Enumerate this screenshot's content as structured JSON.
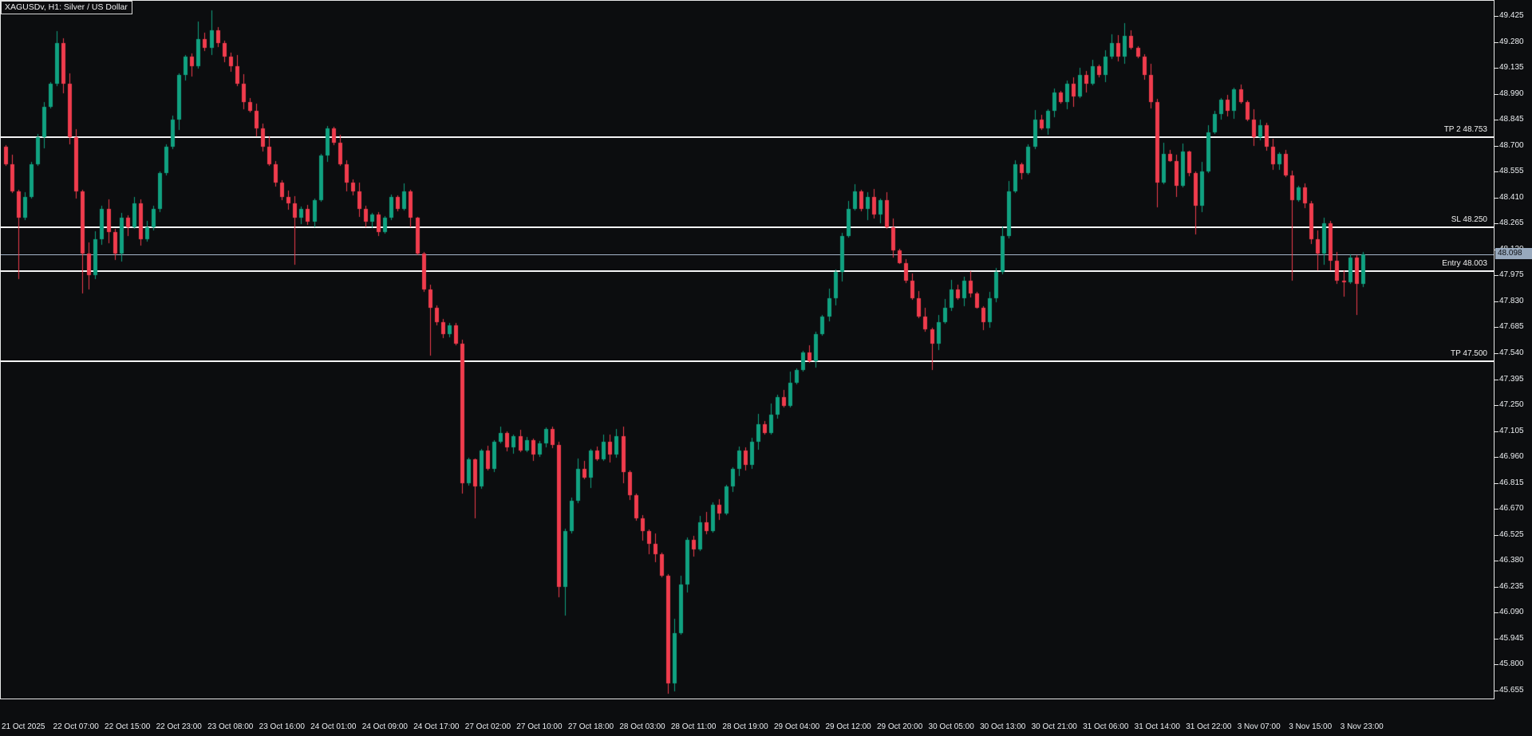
{
  "window": {
    "title": "XAGUSDv, H1:  Silver / US Dollar",
    "symbol": "XAGUSDv",
    "timeframe": "H1",
    "description": "Silver / US Dollar"
  },
  "colors": {
    "background": "#0c0d0f",
    "frame": "#e6e6e6",
    "bull": "#10a281",
    "bear": "#f03c4d",
    "level_line": "#f4f4f4",
    "current_price_line": "#a7b6ca",
    "current_price_badge_bg": "#98a9bd",
    "current_price_badge_text": "#0d1015",
    "axis_text": "#edf0f3"
  },
  "levels": [
    {
      "id": "tp2",
      "label": "TP 2 48.753",
      "price": 48.753
    },
    {
      "id": "sl",
      "label": "SL 48.250",
      "price": 48.25
    },
    {
      "id": "entry",
      "label": "Entry 48.003",
      "price": 48.003
    },
    {
      "id": "tp1",
      "label": "TP 47.500",
      "price": 47.5
    }
  ],
  "current_price": {
    "value": "48.098",
    "price": 48.098
  },
  "y_axis": {
    "top_price": 49.514,
    "bottom_price": 45.615,
    "ticks": [
      "49.425",
      "49.280",
      "49.135",
      "48.990",
      "48.845",
      "48.700",
      "48.555",
      "48.410",
      "48.265",
      "48.120",
      "47.975",
      "47.830",
      "47.685",
      "47.540",
      "47.395",
      "47.250",
      "47.105",
      "46.960",
      "46.815",
      "46.670",
      "46.525",
      "46.380",
      "46.235",
      "46.090",
      "45.945",
      "45.800",
      "45.655"
    ]
  },
  "x_axis": {
    "ticks": [
      "21 Oct 2025",
      "22 Oct 07:00",
      "22 Oct 15:00",
      "22 Oct 23:00",
      "23 Oct 08:00",
      "23 Oct 16:00",
      "24 Oct 01:00",
      "24 Oct 09:00",
      "24 Oct 17:00",
      "27 Oct 02:00",
      "27 Oct 10:00",
      "27 Oct 18:00",
      "28 Oct 03:00",
      "28 Oct 11:00",
      "28 Oct 19:00",
      "29 Oct 04:00",
      "29 Oct 12:00",
      "29 Oct 20:00",
      "30 Oct 05:00",
      "30 Oct 13:00",
      "30 Oct 21:00",
      "31 Oct 06:00",
      "31 Oct 14:00",
      "31 Oct 22:00",
      "3 Nov 07:00",
      "3 Nov 15:00",
      "3 Nov 23:00"
    ]
  },
  "chart_data": {
    "type": "candlestick",
    "title": "XAGUSDv, H1: Silver / US Dollar",
    "symbol": "XAGUSDv",
    "timeframe": "H1",
    "bars_visible": 212,
    "ylim": [
      45.615,
      49.514
    ],
    "x_tick_labels": [
      "21 Oct 2025",
      "22 Oct 07:00",
      "22 Oct 15:00",
      "22 Oct 23:00",
      "23 Oct 08:00",
      "23 Oct 16:00",
      "24 Oct 01:00",
      "24 Oct 09:00",
      "24 Oct 17:00",
      "27 Oct 02:00",
      "27 Oct 10:00",
      "27 Oct 18:00",
      "28 Oct 03:00",
      "28 Oct 11:00",
      "28 Oct 19:00",
      "29 Oct 04:00",
      "29 Oct 12:00",
      "29 Oct 20:00",
      "30 Oct 05:00",
      "30 Oct 13:00",
      "30 Oct 21:00",
      "31 Oct 06:00",
      "31 Oct 14:00",
      "31 Oct 22:00",
      "3 Nov 07:00",
      "3 Nov 15:00",
      "3 Nov 23:00"
    ],
    "open_first": 48.7,
    "closes": [
      48.6,
      48.45,
      48.3,
      48.42,
      48.6,
      48.75,
      48.92,
      49.05,
      49.28,
      49.05,
      48.75,
      48.45,
      48.1,
      47.98,
      48.18,
      48.35,
      48.22,
      48.1,
      48.3,
      48.25,
      48.38,
      48.18,
      48.25,
      48.35,
      48.55,
      48.7,
      48.85,
      49.1,
      49.2,
      49.15,
      49.3,
      49.25,
      49.35,
      49.28,
      49.2,
      49.15,
      49.05,
      48.95,
      48.9,
      48.8,
      48.7,
      48.6,
      48.5,
      48.42,
      48.38,
      48.3,
      48.35,
      48.28,
      48.4,
      48.65,
      48.8,
      48.72,
      48.6,
      48.5,
      48.45,
      48.35,
      48.28,
      48.32,
      48.22,
      48.3,
      48.42,
      48.35,
      48.45,
      48.3,
      48.1,
      47.9,
      47.8,
      47.72,
      47.65,
      47.7,
      47.6,
      46.82,
      46.95,
      46.8,
      47.0,
      46.9,
      47.05,
      47.1,
      47.02,
      47.08,
      47.0,
      47.06,
      46.98,
      47.04,
      47.12,
      47.03,
      46.24,
      46.55,
      46.72,
      46.9,
      46.85,
      47.0,
      46.95,
      47.05,
      46.98,
      47.08,
      46.88,
      46.75,
      46.62,
      46.55,
      46.48,
      46.42,
      46.3,
      45.7,
      45.98,
      46.25,
      46.5,
      46.45,
      46.6,
      46.55,
      46.7,
      46.65,
      46.8,
      46.9,
      47.0,
      46.92,
      47.05,
      47.15,
      47.1,
      47.2,
      47.3,
      47.25,
      47.38,
      47.45,
      47.55,
      47.5,
      47.65,
      47.75,
      47.85,
      48.0,
      48.2,
      48.35,
      48.45,
      48.35,
      48.42,
      48.32,
      48.4,
      48.25,
      48.12,
      48.05,
      47.95,
      47.85,
      47.75,
      47.68,
      47.6,
      47.72,
      47.8,
      47.9,
      47.85,
      47.95,
      47.88,
      47.8,
      47.72,
      47.85,
      48.0,
      48.2,
      48.45,
      48.6,
      48.55,
      48.7,
      48.85,
      48.8,
      48.9,
      49.0,
      48.95,
      49.05,
      48.98,
      49.1,
      49.05,
      49.15,
      49.1,
      49.2,
      49.28,
      49.2,
      49.32,
      49.25,
      49.2,
      49.1,
      48.95,
      48.5,
      48.66,
      48.62,
      48.48,
      48.67,
      48.55,
      48.37,
      48.56,
      48.78,
      48.88,
      48.96,
      48.9,
      49.02,
      48.95,
      48.85,
      48.75,
      48.82,
      48.7,
      48.6,
      48.66,
      48.54,
      48.4,
      48.47,
      48.38,
      48.18,
      48.1,
      48.27,
      48.06,
      47.95,
      47.94,
      48.08,
      47.93,
      48.098
    ],
    "wick_overrides": {
      "2": {
        "low": 47.96
      },
      "8": {
        "high": 49.345
      },
      "12": {
        "low": 47.88
      },
      "13": {
        "low": 47.9
      },
      "30": {
        "high": 49.4
      },
      "32": {
        "high": 49.46
      },
      "45": {
        "low": 48.04
      },
      "66": {
        "low": 47.53
      },
      "71": {
        "low": 46.76
      },
      "73": {
        "low": 46.62
      },
      "86": {
        "low": 46.18
      },
      "87": {
        "low": 46.08
      },
      "103": {
        "low": 45.64
      },
      "104": {
        "low": 45.655,
        "high": 46.06
      },
      "144": {
        "low": 47.45
      },
      "174": {
        "high": 49.39
      },
      "179": {
        "low": 48.36
      },
      "185": {
        "low": 48.21
      },
      "200": {
        "low": 47.95
      },
      "204": {
        "low": 48.01
      },
      "208": {
        "low": 47.86
      },
      "210": {
        "low": 47.76
      }
    },
    "levels": [
      {
        "label": "TP 2 48.753",
        "price": 48.753
      },
      {
        "label": "SL 48.250",
        "price": 48.25
      },
      {
        "label": "Entry 48.003",
        "price": 48.003
      },
      {
        "label": "TP 47.500",
        "price": 47.5
      }
    ],
    "current_price": 48.098
  }
}
